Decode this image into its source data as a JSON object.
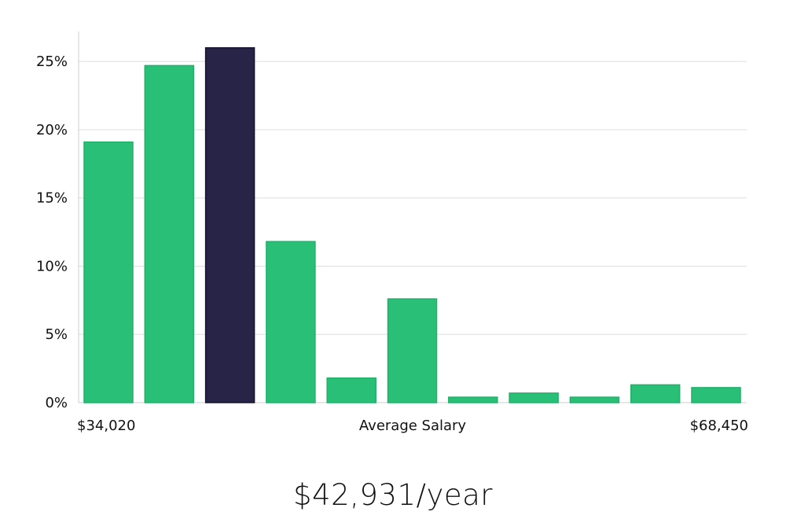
{
  "chart_data": {
    "type": "bar",
    "title": "",
    "xlabel": "Average Salary",
    "ylabel": "",
    "x_range_labels": {
      "min": "$34,020",
      "max": "$68,450"
    },
    "yticks": [
      "0%",
      "5%",
      "10%",
      "15%",
      "20%",
      "25%"
    ],
    "ylim": [
      0,
      27.2
    ],
    "grid": true,
    "values": [
      19.1,
      24.7,
      26.0,
      11.8,
      1.8,
      7.6,
      0.4,
      0.7,
      0.4,
      1.3,
      1.1
    ],
    "highlight_index": 2,
    "colors": {
      "bar": "#2abf76",
      "bar_edge": "#22b06a",
      "highlight": "#272447",
      "grid": "#dddddd",
      "axis": "#cccccc"
    }
  },
  "summary": {
    "salary": "$42,931/year"
  }
}
